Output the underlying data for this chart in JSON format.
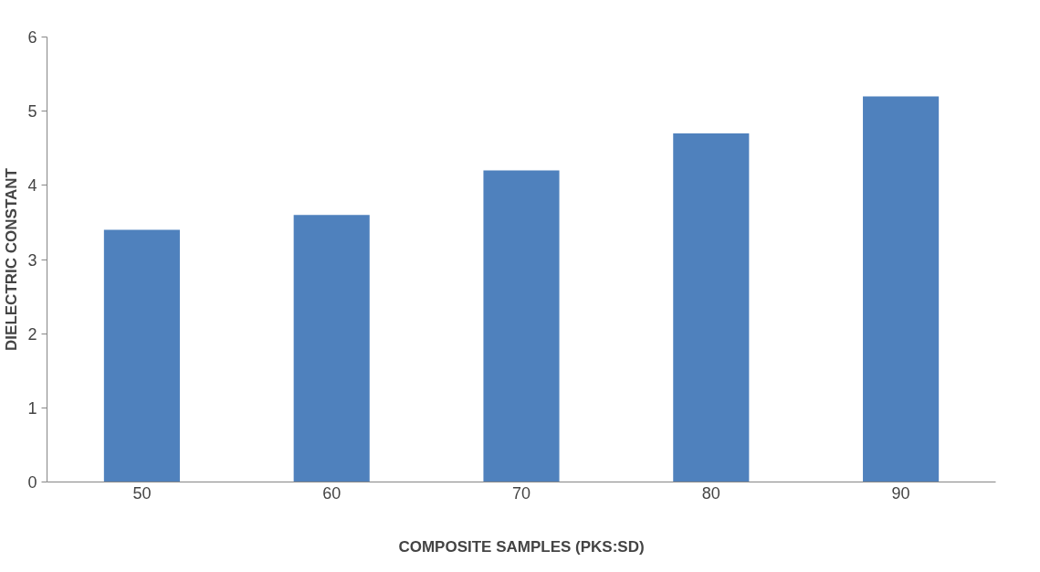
{
  "chart_data": {
    "type": "bar",
    "xlabel": "COMPOSITE SAMPLES (PKS:SD)",
    "ylabel": "DIELECTRIC CONSTANT",
    "categories": [
      "50",
      "60",
      "70",
      "80",
      "90"
    ],
    "values": [
      3.4,
      3.6,
      4.2,
      4.7,
      5.2
    ],
    "color": "#4f81bd",
    "ylim": [
      0,
      6
    ],
    "yticks": [
      0,
      1,
      2,
      3,
      4,
      5,
      6
    ],
    "grid": false
  }
}
